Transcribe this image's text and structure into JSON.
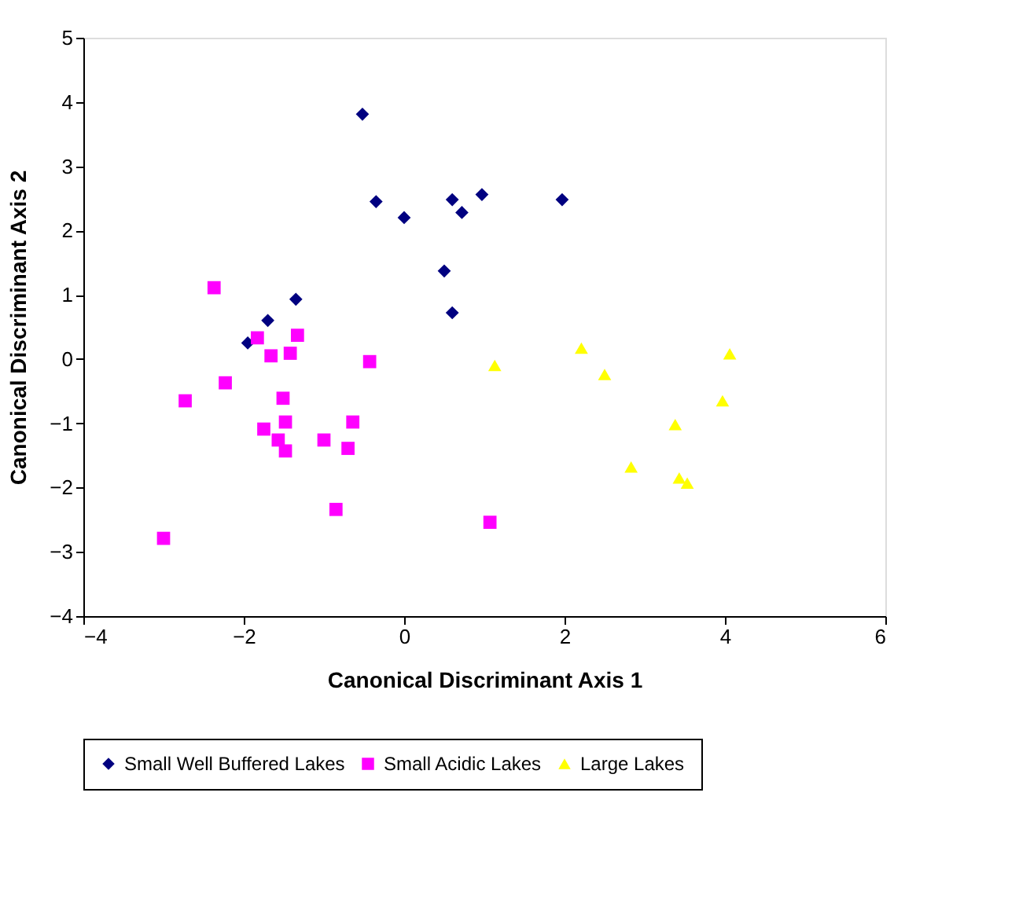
{
  "chart_data": {
    "type": "scatter",
    "xlabel": "Canonical Discriminant Axis 1",
    "ylabel": "Canonical Discriminant Axis 2",
    "xlim": [
      -4,
      6
    ],
    "xticks": [
      -4,
      -2,
      0,
      2,
      4,
      6
    ],
    "ylim": [
      -4,
      5
    ],
    "yticks": [
      -4,
      -3,
      -2,
      -1,
      0,
      1,
      2,
      3,
      4,
      5
    ],
    "grid": false,
    "legend": "bottom",
    "series": [
      {
        "name": "Small Well Buffered Lakes",
        "color": "#000080",
        "marker": "diamond",
        "x": [
          -0.52,
          -0.35,
          0.0,
          0.6,
          0.72,
          0.97,
          1.97,
          0.5,
          0.6,
          -1.35,
          -1.7,
          -1.95
        ],
        "values": [
          3.81,
          2.45,
          2.2,
          2.48,
          2.28,
          2.56,
          2.48,
          1.37,
          0.72,
          0.93,
          0.6,
          0.25
        ]
      },
      {
        "name": "Small Acidic Lakes",
        "color": "#ff00ff",
        "marker": "square",
        "x": [
          -2.37,
          -1.83,
          -1.66,
          -1.42,
          -1.33,
          -0.43,
          -2.23,
          -2.73,
          -1.51,
          -1.48,
          -1.75,
          -1.57,
          -1.48,
          -0.64,
          -1.0,
          -0.7,
          -0.85,
          -3.0,
          1.07
        ],
        "values": [
          1.11,
          0.33,
          0.05,
          0.09,
          0.37,
          -0.04,
          -0.37,
          -0.65,
          -0.61,
          -0.98,
          -1.09,
          -1.26,
          -1.43,
          -0.98,
          -1.26,
          -1.39,
          -2.34,
          -2.79,
          -2.54
        ]
      },
      {
        "name": "Large Lakes",
        "color": "#ffff00",
        "marker": "triangle",
        "x": [
          1.13,
          2.21,
          2.5,
          4.06,
          3.97,
          3.38,
          2.83,
          3.43,
          3.53
        ],
        "values": [
          -0.1,
          0.17,
          -0.24,
          0.08,
          -0.65,
          -1.02,
          -1.68,
          -1.85,
          -1.93
        ]
      }
    ]
  }
}
